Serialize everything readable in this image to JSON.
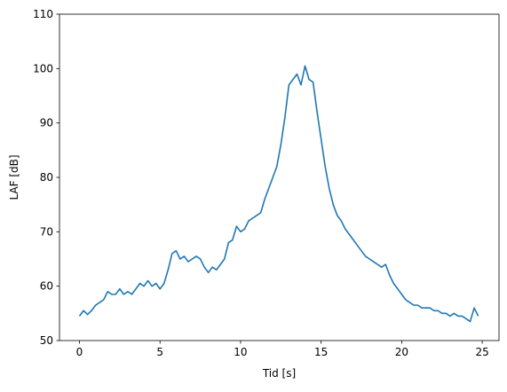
{
  "chart_data": {
    "type": "line",
    "xlabel": "Tid [s]",
    "ylabel": "LAF [dB]",
    "x": [
      0,
      0.25,
      0.5,
      0.75,
      1,
      1.25,
      1.5,
      1.75,
      2,
      2.25,
      2.5,
      2.75,
      3,
      3.25,
      3.5,
      3.75,
      4,
      4.25,
      4.5,
      4.75,
      5,
      5.25,
      5.5,
      5.75,
      6,
      6.25,
      6.5,
      6.75,
      7,
      7.25,
      7.5,
      7.75,
      8,
      8.25,
      8.5,
      8.75,
      9,
      9.25,
      9.5,
      9.75,
      10,
      10.25,
      10.5,
      10.75,
      11,
      11.25,
      11.5,
      11.75,
      12,
      12.25,
      12.5,
      12.75,
      13,
      13.25,
      13.5,
      13.75,
      14,
      14.25,
      14.5,
      14.75,
      15,
      15.25,
      15.5,
      15.75,
      16,
      16.25,
      16.5,
      16.75,
      17,
      17.25,
      17.5,
      17.75,
      18,
      18.25,
      18.5,
      18.75,
      19,
      19.25,
      19.5,
      19.75,
      20,
      20.25,
      20.5,
      20.75,
      21,
      21.25,
      21.5,
      21.75,
      22,
      22.25,
      22.5,
      22.75,
      23,
      23.25,
      23.5,
      23.75,
      24,
      24.25,
      24.5,
      24.75
    ],
    "series": [
      {
        "color": "#1f77b4",
        "values": [
          54.5,
          55.5,
          54.8,
          55.5,
          56.5,
          57,
          57.5,
          59,
          58.5,
          58.5,
          59.5,
          58.5,
          59,
          58.5,
          59.5,
          60.5,
          60,
          61,
          60,
          60.5,
          59.5,
          60.5,
          63,
          66,
          66.5,
          65,
          65.5,
          64.5,
          65,
          65.5,
          65,
          63.5,
          62.5,
          63.5,
          63,
          64,
          65,
          68,
          68.5,
          71,
          70,
          70.5,
          72,
          72.5,
          73,
          73.5,
          76,
          78,
          80,
          82,
          86,
          91,
          97,
          98,
          99,
          97,
          100.5,
          98,
          97.5,
          92,
          87,
          82,
          78,
          75,
          73,
          72,
          70.5,
          69.5,
          68.5,
          67.5,
          66.5,
          65.5,
          65,
          64.5,
          64,
          63.5,
          64,
          62,
          60.5,
          59.5,
          58.5,
          57.5,
          57,
          56.5,
          56.5,
          56,
          56,
          56,
          55.5,
          55.5,
          55,
          55,
          54.5,
          55,
          54.5,
          54.5,
          54,
          53.5,
          56,
          54.5
        ]
      }
    ],
    "xlim": [
      -1.24,
      26.04
    ],
    "ylim": [
      50,
      110
    ],
    "xticks": [
      0,
      5,
      10,
      15,
      20,
      25
    ],
    "yticks": [
      50,
      60,
      70,
      80,
      90,
      100,
      110
    ]
  }
}
